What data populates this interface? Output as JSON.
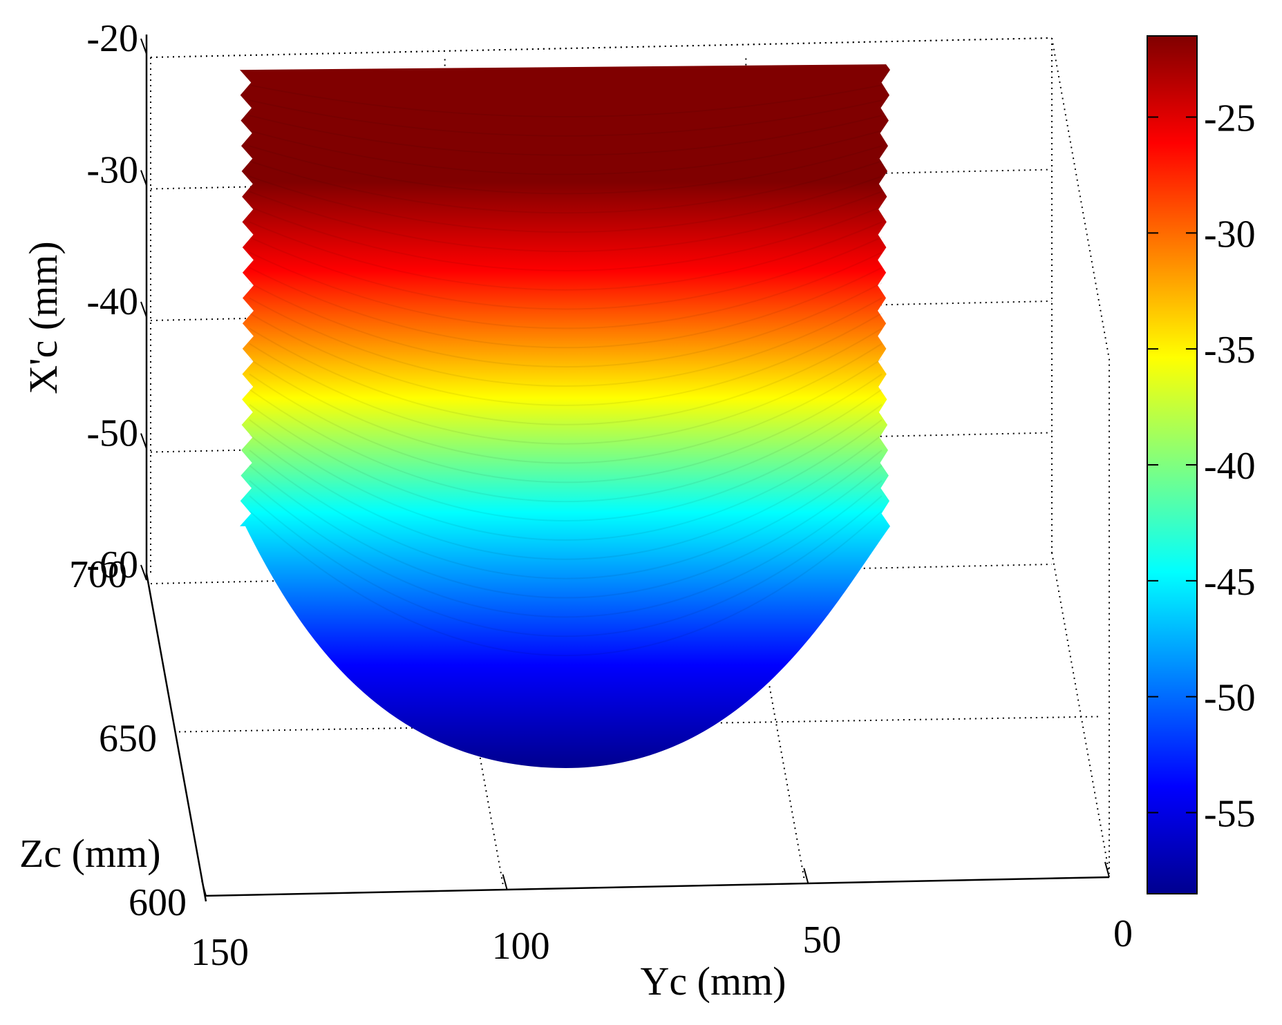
{
  "chart_data": {
    "type": "surface",
    "title": "",
    "xlabel": "Yc (mm)",
    "ylabel": "X'c (mm)",
    "zlabel": "Zc (mm)",
    "y_axis": {
      "ticks": [
        150,
        100,
        50,
        0
      ],
      "reversed": true
    },
    "vertical_axis": {
      "ticks": [
        -20,
        -30,
        -40,
        -50,
        -60
      ],
      "range": [
        -60,
        -20
      ]
    },
    "depth_axis": {
      "ticks": [
        700,
        650,
        600
      ],
      "range": [
        600,
        700
      ]
    },
    "surface": {
      "shape": "partial cylinder",
      "yc_range": [
        35,
        150
      ],
      "xc_range": [
        -58,
        -22
      ],
      "color_mapped_to": "X'c"
    },
    "colorbar": {
      "colormap": "jet",
      "range": [
        -58.5,
        -21.5
      ],
      "ticks": [
        -25,
        -30,
        -35,
        -40,
        -45,
        -50,
        -55
      ]
    },
    "grid": true
  }
}
